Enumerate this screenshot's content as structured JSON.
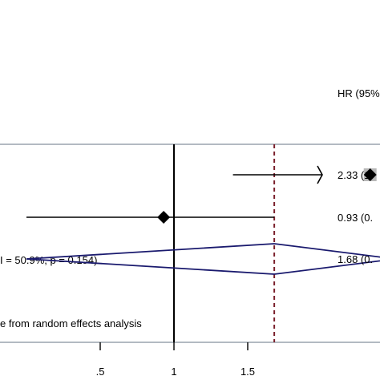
{
  "chart_data": {
    "type": "forest",
    "column_header": "HR (95%",
    "x_ticks": [
      {
        "value": 0.5,
        "label": ".5"
      },
      {
        "value": 1,
        "label": "1"
      },
      {
        "value": 1.5,
        "label": "1.5"
      }
    ],
    "null_line": 1,
    "pooled_line": 1.68,
    "studies": [
      {
        "hr": 2.33,
        "ci_low": 1.4,
        "ci_high": 3.5,
        "arrow_right": true,
        "label": "2.33 (1."
      },
      {
        "hr": 0.93,
        "ci_low": -0.0,
        "ci_high": 1.68,
        "arrow_right": false,
        "label": "0.93 (0."
      }
    ],
    "pooled": {
      "hr": 1.68,
      "ci_low": 0.0,
      "ci_high": 2.5,
      "label": "1.68 (0.",
      "heterogeneity_text": "I = 50.9%, p = 0.154)"
    },
    "footnote": "e from random effects analysis"
  }
}
